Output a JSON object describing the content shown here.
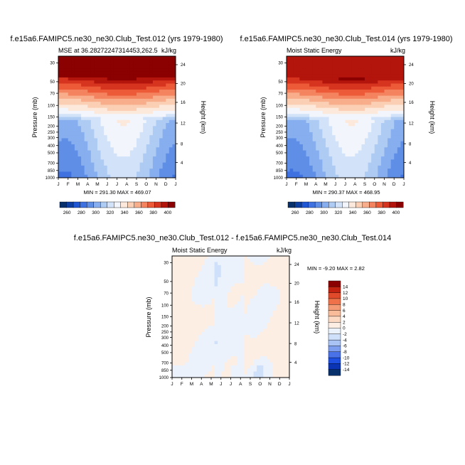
{
  "colors": {
    "top_panel_scale": [
      "#08306b",
      "#0d3fa0",
      "#1f56d3",
      "#3f72e0",
      "#5f8ee6",
      "#87aeee",
      "#aecbf3",
      "#d2e3f9",
      "#f2f6fc",
      "#fde9dc",
      "#fbcfb4",
      "#f8ad8b",
      "#f4835f",
      "#ec5a38",
      "#d73420",
      "#b3140c",
      "#8b0000"
    ],
    "diff_panel_scale": [
      "#08306b",
      "#0b34b5",
      "#1f4fe0",
      "#4a72e8",
      "#7d9eee",
      "#a9c3f4",
      "#cfe0fa",
      "#ebf2fc",
      "#fdeee3",
      "#fbd9c3",
      "#f8bc9b",
      "#f49a74",
      "#ee7149",
      "#e04a2a",
      "#c2220f",
      "#8b0000"
    ]
  },
  "chart_data": [
    {
      "type": "heatmap",
      "panel": "top-left",
      "title": "f.e15a6.FAMIPC5.ne30_ne30.Club_Test.012 (yrs 1979-1980)",
      "subtitle_left": "MSE at 36.28272247314453,262.5",
      "units": "kJ/kg",
      "ylabel": "Pressure (mb)",
      "ylabel_right": "Height (km)",
      "x_ticks": [
        "J",
        "F",
        "M",
        "A",
        "M",
        "J",
        "J",
        "A",
        "S",
        "O",
        "N",
        "D",
        "J"
      ],
      "pressure_ticks": [
        "30",
        "50",
        "70",
        "100",
        "150",
        "200",
        "250",
        "300",
        "400",
        "500",
        "700",
        "850",
        "1000"
      ],
      "height_ticks": [
        "24",
        "20",
        "16",
        "12",
        "8",
        "4"
      ],
      "stats": "MIN = 291.30 MAX = 469.07",
      "min": 291.3,
      "max": 469.07,
      "colorbar_labels": [
        "260",
        "280",
        "300",
        "320",
        "340",
        "360",
        "380",
        "400"
      ],
      "colorbar_range": [
        250,
        410
      ]
    },
    {
      "type": "heatmap",
      "panel": "top-right",
      "title": "f.e15a6.FAMIPC5.ne30_ne30.Club_Test.014 (yrs 1979-1980)",
      "subtitle_left": "Moist Static Energy",
      "units": "kJ/kg",
      "ylabel": "Pressure (mb)",
      "ylabel_right": "Height (km)",
      "x_ticks": [
        "J",
        "F",
        "M",
        "A",
        "M",
        "J",
        "J",
        "A",
        "S",
        "O",
        "N",
        "D",
        "J"
      ],
      "pressure_ticks": [
        "30",
        "50",
        "70",
        "100",
        "150",
        "200",
        "250",
        "300",
        "400",
        "500",
        "700",
        "850",
        "1000"
      ],
      "height_ticks": [
        "24",
        "20",
        "16",
        "12",
        "8",
        "4"
      ],
      "stats": "MIN = 290.37 MAX = 468.95",
      "min": 290.37,
      "max": 468.95,
      "colorbar_labels": [
        "260",
        "280",
        "300",
        "320",
        "340",
        "360",
        "380",
        "400"
      ],
      "colorbar_range": [
        250,
        410
      ]
    },
    {
      "type": "heatmap",
      "panel": "bottom-difference",
      "title": "f.e15a6.FAMIPC5.ne30_ne30.Club_Test.012 - f.e15a6.FAMIPC5.ne30_ne30.Club_Test.014",
      "subtitle_left": "Moist Static Energy",
      "units": "kJ/kg",
      "ylabel": "Pressure (mb)",
      "ylabel_right": "Height (km)",
      "x_ticks": [
        "J",
        "F",
        "M",
        "A",
        "M",
        "J",
        "J",
        "A",
        "S",
        "O",
        "N",
        "D",
        "J"
      ],
      "pressure_ticks": [
        "30",
        "50",
        "70",
        "100",
        "150",
        "200",
        "250",
        "300",
        "400",
        "500",
        "700",
        "850",
        "1000"
      ],
      "height_ticks": [
        "24",
        "20",
        "16",
        "12",
        "8",
        "4"
      ],
      "stats": "MIN =  -9.20 MAX =   2.82",
      "min": -9.2,
      "max": 2.82,
      "colorbar_labels": [
        "14",
        "12",
        "10",
        "8",
        "6",
        "4",
        "2",
        "0",
        "-2",
        "-4",
        "-6",
        "-8",
        "-10",
        "-12",
        "-14"
      ]
    }
  ]
}
